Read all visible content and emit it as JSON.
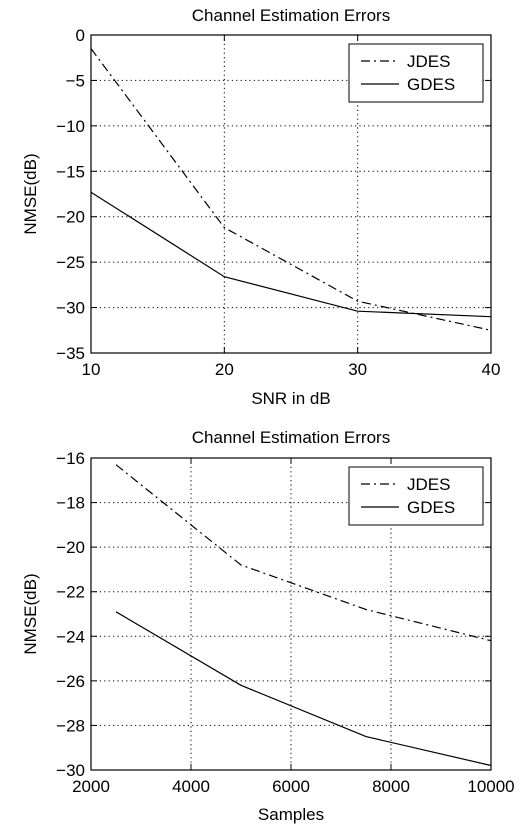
{
  "chart_data": [
    {
      "type": "line",
      "title": "Channel Estimation Errors",
      "xlabel": "SNR in dB",
      "ylabel": "NMSE(dB)",
      "xlim": [
        10,
        40
      ],
      "ylim": [
        -35,
        0
      ],
      "xticks": [
        10,
        20,
        30,
        40
      ],
      "yticks": [
        0,
        -5,
        -10,
        -15,
        -20,
        -25,
        -30,
        -35
      ],
      "xtick_labels": [
        "10",
        "20",
        "30",
        "40"
      ],
      "ytick_labels": [
        "0",
        "−5",
        "−10",
        "−15",
        "−20",
        "−25",
        "−30",
        "−35"
      ],
      "grid": true,
      "legend_position": "top-right",
      "series": [
        {
          "name": "JDES",
          "style": "dashdot",
          "x": [
            10,
            20,
            30,
            40
          ],
          "y": [
            -1.5,
            -21.2,
            -29.3,
            -32.5
          ]
        },
        {
          "name": "GDES",
          "style": "solid",
          "x": [
            10,
            20,
            30,
            40
          ],
          "y": [
            -17.3,
            -26.6,
            -30.4,
            -31.0
          ]
        }
      ]
    },
    {
      "type": "line",
      "title": "Channel Estimation Errors",
      "xlabel": "Samples",
      "ylabel": "NMSE(dB)",
      "xlim": [
        2000,
        10000
      ],
      "ylim": [
        -30,
        -16
      ],
      "xticks": [
        2000,
        4000,
        6000,
        8000,
        10000
      ],
      "yticks": [
        -16,
        -18,
        -20,
        -22,
        -24,
        -26,
        -28,
        -30
      ],
      "xtick_labels": [
        "2000",
        "4000",
        "6000",
        "8000",
        "10000"
      ],
      "ytick_labels": [
        "−16",
        "−18",
        "−20",
        "−22",
        "−24",
        "−26",
        "−28",
        "−30"
      ],
      "grid": true,
      "legend_position": "top-right",
      "series": [
        {
          "name": "JDES",
          "style": "dashdot",
          "x": [
            2500,
            5000,
            7500,
            10000
          ],
          "y": [
            -16.3,
            -20.8,
            -22.8,
            -24.2
          ]
        },
        {
          "name": "GDES",
          "style": "solid",
          "x": [
            2500,
            5000,
            7500,
            10000
          ],
          "y": [
            -22.9,
            -26.2,
            -28.5,
            -29.8
          ]
        }
      ]
    }
  ]
}
